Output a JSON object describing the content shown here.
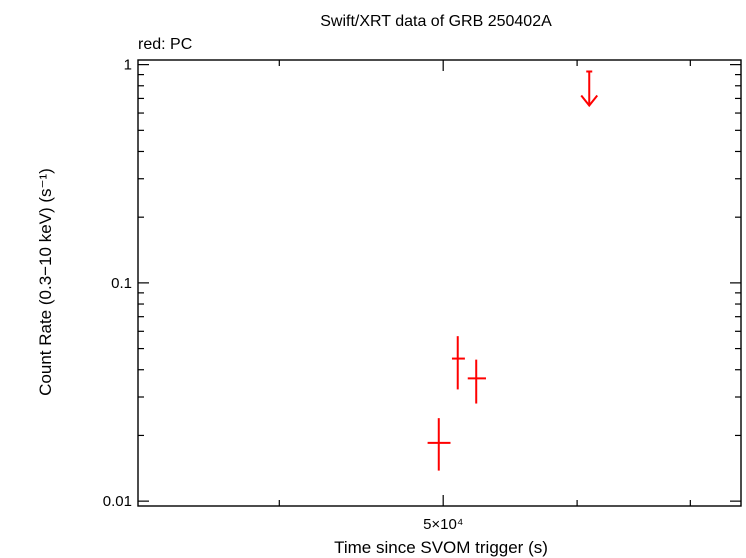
{
  "chart_data": {
    "type": "scatter",
    "title": "Swift/XRT data of GRB 250402A",
    "legend_text": "red: PC",
    "xlabel": "Time since SVOM trigger (s)",
    "ylabel": "Count Rate (0.3−10 keV) (s⁻¹)",
    "xscale": "log",
    "yscale": "log",
    "xlim": [
      33000,
      75000
    ],
    "ylim": [
      0.0095,
      1.05
    ],
    "x_tick_labels": [
      {
        "value": 50000,
        "label": "5×10⁴"
      }
    ],
    "y_tick_labels": [
      {
        "value": 1,
        "label": "1"
      },
      {
        "value": 0.1,
        "label": "0.1"
      },
      {
        "value": 0.01,
        "label": "0.01"
      }
    ],
    "series": [
      {
        "color": "#ff0000",
        "points": [
          {
            "x": 49700,
            "x_lo": 48950,
            "x_hi": 50500,
            "y": 0.0185,
            "y_lo": 0.0138,
            "y_hi": 0.024
          },
          {
            "x": 51000,
            "x_lo": 50600,
            "x_hi": 51500,
            "y": 0.045,
            "y_lo": 0.0325,
            "y_hi": 0.057
          },
          {
            "x": 52300,
            "x_lo": 51700,
            "x_hi": 53000,
            "y": 0.0365,
            "y_lo": 0.028,
            "y_hi": 0.0445
          }
        ],
        "upper_limits": [
          {
            "x": 61000,
            "y": 0.93
          }
        ]
      }
    ]
  }
}
